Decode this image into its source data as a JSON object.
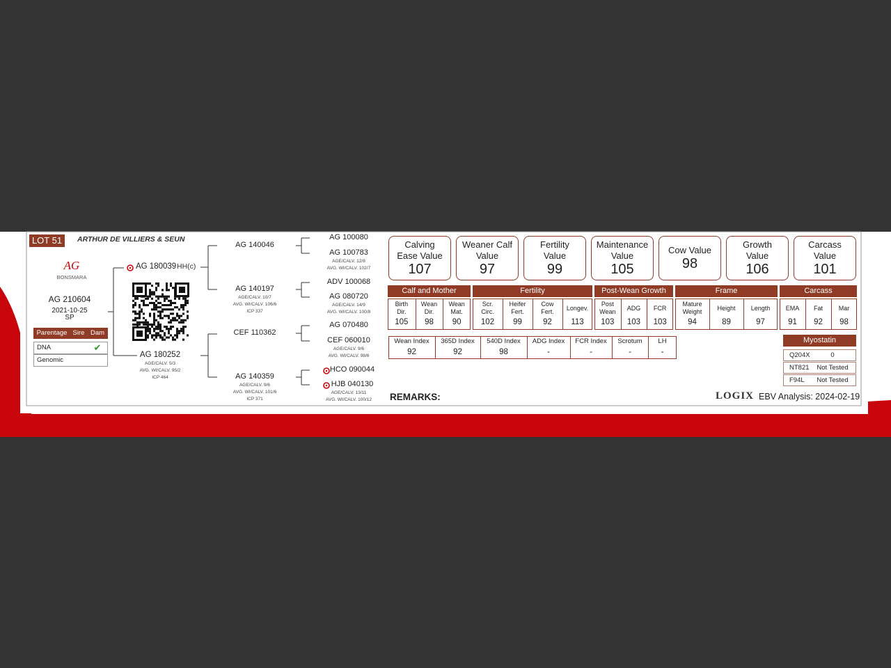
{
  "lot": "LOT 51",
  "breeder": "ARTHUR DE VILLIERS & SEUN",
  "logo": {
    "mark": "AG",
    "name": "BONSMARA"
  },
  "animal": {
    "id": "AG 210604",
    "birth_date": "2021-10-25",
    "sex": "SP"
  },
  "parentage": {
    "header": [
      "Parentage",
      "Sire",
      "Dam"
    ],
    "rows": [
      {
        "label": "DNA",
        "dam": "✔"
      },
      {
        "label": "Genomic"
      }
    ]
  },
  "sire": {
    "id": "AG 180039",
    "tag": "HH(c)",
    "marked": true
  },
  "dam": {
    "id": "AG 180252",
    "details": [
      "AGE/CALV. 5/3",
      "AVG. WI/CALV. 95/2",
      "ICP 464"
    ]
  },
  "grandparents": [
    {
      "id": "AG 140046"
    },
    {
      "id": "AG 140197",
      "details": [
        "AGE/CALV. 10/7",
        "AVG. WI/CALV. 106/6",
        "ICP 337"
      ]
    },
    {
      "id": "CEF 110362"
    },
    {
      "id": "AG 140359",
      "details": [
        "AGE/CALV. 9/6",
        "AVG. WI/CALV. 101/6",
        "ICP 371"
      ]
    }
  ],
  "great_grandparents": [
    {
      "id": "AG 100080"
    },
    {
      "id": "AG 100783",
      "details": [
        "AGE/CALV. 12/8",
        "AVG. WI/CALV. 102/7"
      ]
    },
    {
      "id": "ADV 100068"
    },
    {
      "id": "AG 080720",
      "details": [
        "AGE/CALV. 14/9",
        "AVG. WI/CALV. 100/8"
      ]
    },
    {
      "id": "AG 070480"
    },
    {
      "id": "CEF 060010",
      "details": [
        "AGE/CALV. 9/6",
        "AVG. WI/CALV. 98/6"
      ]
    },
    {
      "id": "HCO 090044",
      "marked": true
    },
    {
      "id": "HJB 040130",
      "marked": true,
      "details": [
        "AGE/CALV. 13/11",
        "AVG. WI/CALV. 100/12"
      ]
    }
  ],
  "values": [
    {
      "label": "Calving Ease Value",
      "value": 107
    },
    {
      "label": "Weaner Calf Value",
      "value": 97
    },
    {
      "label": "Fertility Value",
      "value": 99
    },
    {
      "label": "Maintenance Value",
      "value": 105
    },
    {
      "label": "Cow Value",
      "value": 98
    },
    {
      "label": "Growth Value",
      "value": 106
    },
    {
      "label": "Carcass Value",
      "value": 101
    }
  ],
  "ebv_groups": [
    {
      "name": "Calf and Mother",
      "traits": [
        {
          "label": "Birth Dir.",
          "value": 105
        },
        {
          "label": "Wean Dir.",
          "value": 98
        },
        {
          "label": "Wean Mat.",
          "value": 90
        }
      ]
    },
    {
      "name": "Fertility",
      "traits": [
        {
          "label": "Scr. Circ.",
          "value": 102
        },
        {
          "label": "Heifer Fert.",
          "value": 99
        },
        {
          "label": "Cow Fert.",
          "value": 92
        },
        {
          "label": "Longev.",
          "value": 113
        }
      ]
    },
    {
      "name": "Post-Wean Growth",
      "traits": [
        {
          "label": "Post Wean",
          "value": 103
        },
        {
          "label": "ADG",
          "value": 103
        },
        {
          "label": "FCR",
          "value": 103
        }
      ]
    },
    {
      "name": "Frame",
      "traits": [
        {
          "label": "Mature Weight",
          "value": 94
        },
        {
          "label": "Height",
          "value": 89
        },
        {
          "label": "Length",
          "value": 97
        }
      ]
    },
    {
      "name": "Carcass",
      "traits": [
        {
          "label": "EMA",
          "value": 91
        },
        {
          "label": "Fat",
          "value": 92
        },
        {
          "label": "Mar",
          "value": 98
        }
      ]
    }
  ],
  "indexes": [
    {
      "label": "Wean Index",
      "value": 92
    },
    {
      "label": "365D Index",
      "value": 92
    },
    {
      "label": "540D Index",
      "value": 98
    },
    {
      "label": "ADG Index",
      "value": "-"
    },
    {
      "label": "FCR Index",
      "value": "-"
    },
    {
      "label": "Scrotum",
      "value": "-"
    },
    {
      "label": "LH",
      "value": "-"
    }
  ],
  "myostatin": {
    "title": "Myostatin",
    "rows": [
      [
        "Q204X",
        0
      ],
      [
        "NT821",
        "Not Tested"
      ],
      [
        "F94L",
        "Not Tested"
      ]
    ]
  },
  "remarks": "REMARKS:",
  "footer": {
    "logo": "LOGIX",
    "analysis": "EBV Analysis: 2024-02-19"
  }
}
